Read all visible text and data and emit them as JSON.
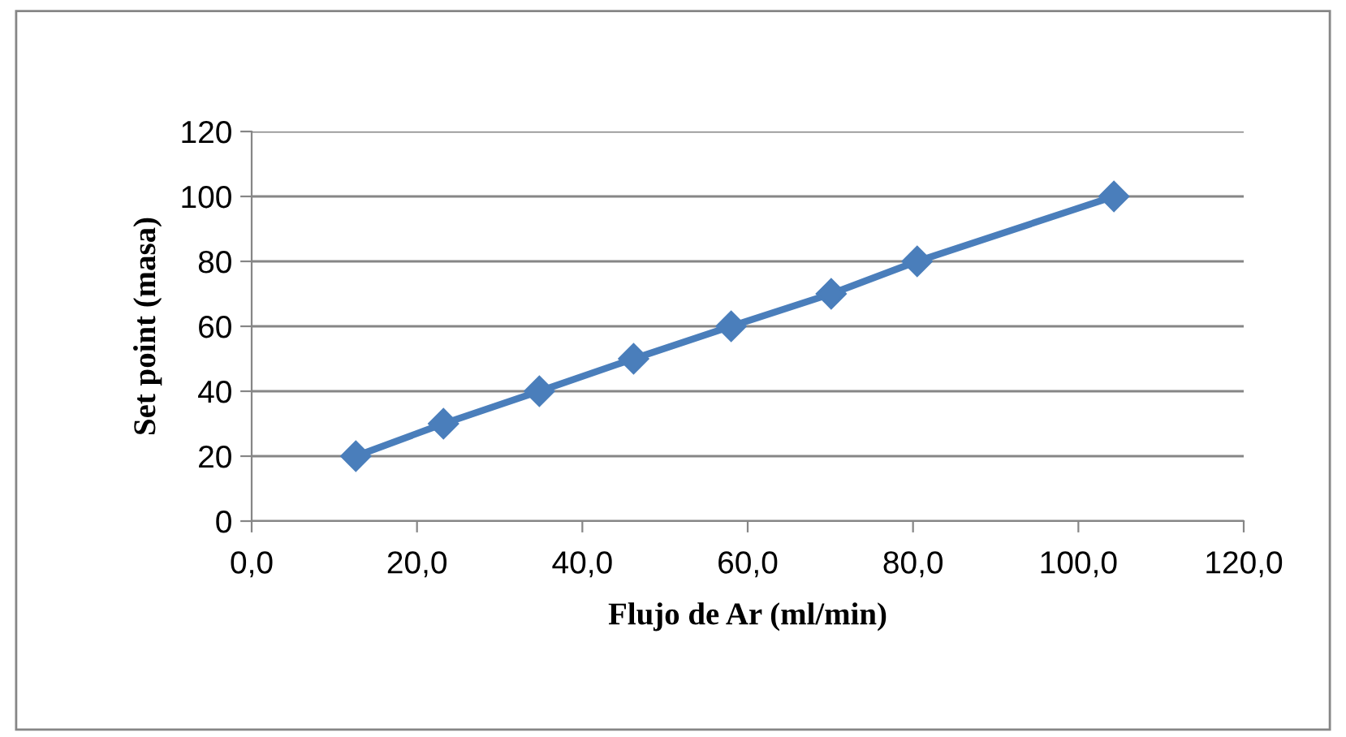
{
  "chart_data": {
    "type": "line",
    "xlabel": "Flujo de Ar (ml/min)",
    "ylabel": "Set point (masa)",
    "x": [
      12.6,
      23.2,
      34.8,
      46.2,
      58.0,
      70.1,
      80.5,
      104.3
    ],
    "series": [
      {
        "color": "#4a7ebb",
        "values": [
          20,
          30,
          40,
          50,
          60,
          70,
          80,
          100
        ]
      }
    ],
    "xlim": [
      0,
      120
    ],
    "xticks": [
      {
        "value": 0,
        "label": "0,0"
      },
      {
        "value": 20,
        "label": "20,0"
      },
      {
        "value": 40,
        "label": "40,0"
      },
      {
        "value": 60,
        "label": "60,0"
      },
      {
        "value": 80,
        "label": "80,0"
      },
      {
        "value": 100,
        "label": "100,0"
      },
      {
        "value": 120,
        "label": "120,0"
      }
    ],
    "ylim": [
      0,
      120
    ],
    "yticks": [
      0,
      20,
      40,
      60,
      80,
      100,
      120
    ],
    "grid": "y",
    "marker": "diamond",
    "line_style": "solid",
    "legend": false
  }
}
